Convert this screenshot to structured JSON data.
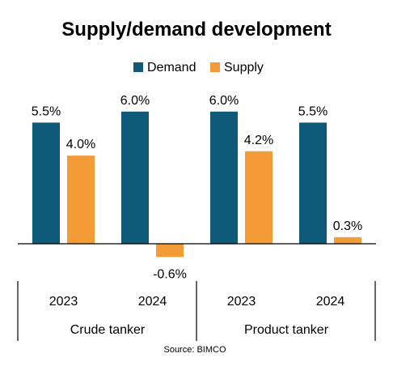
{
  "chart_data": {
    "type": "bar",
    "title": "Supply/demand development",
    "source": "Source: BIMCO",
    "legend_position": "top-center",
    "groups": [
      {
        "label": "Crude tanker",
        "years": [
          "2023",
          "2024"
        ]
      },
      {
        "label": "Product tanker",
        "years": [
          "2023",
          "2024"
        ]
      }
    ],
    "categories": [
      "2023",
      "2024",
      "2023",
      "2024"
    ],
    "series": [
      {
        "name": "Demand",
        "color": "#0f5a78",
        "values": [
          5.5,
          6.0,
          6.0,
          5.5
        ],
        "labels": [
          "5.5%",
          "6.0%",
          "6.0%",
          "5.5%"
        ]
      },
      {
        "name": "Supply",
        "color": "#f39b36",
        "values": [
          4.0,
          -0.6,
          4.2,
          0.3
        ],
        "labels": [
          "4.0%",
          "-0.6%",
          "4.2%",
          "0.3%"
        ]
      }
    ],
    "ylim": [
      -1,
      7
    ],
    "grid": false
  }
}
